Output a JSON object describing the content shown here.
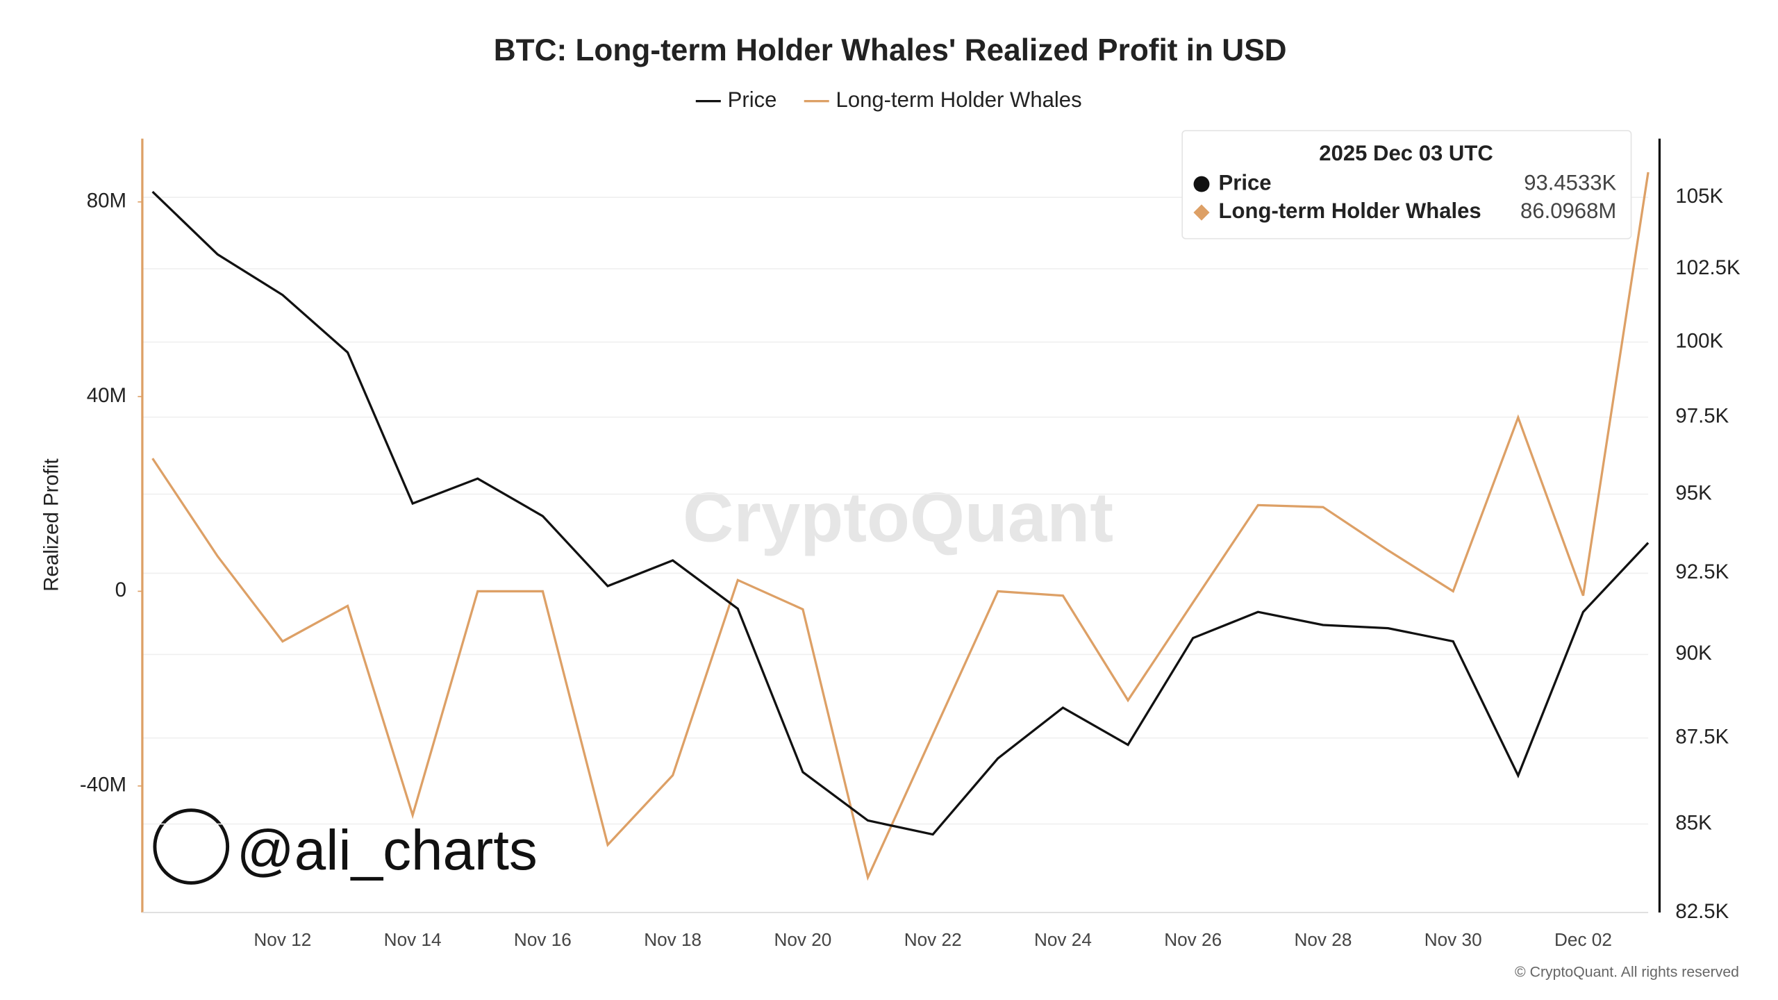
{
  "chart_data": {
    "type": "line",
    "title": "BTC: Long-term Holder Whales' Realized Profit in USD",
    "y_label": "Realized Profit",
    "watermark": "CryptoQuant",
    "handle": "@ali_charts",
    "copyright": "© CryptoQuant. All rights reserved",
    "categories": [
      null,
      null,
      "Nov 12",
      null,
      "Nov 14",
      null,
      "Nov 16",
      null,
      "Nov 18",
      null,
      "Nov 20",
      null,
      "Nov 22",
      null,
      "Nov 24",
      null,
      "Nov 26",
      null,
      "Nov 28",
      null,
      "Nov 30",
      null,
      "Dec 02",
      null
    ],
    "series": [
      {
        "name": "Price",
        "color": "#111111",
        "axis": "y2",
        "values": [
          105200,
          103000,
          101600,
          99650,
          94700,
          95500,
          94300,
          92100,
          92900,
          91400,
          86500,
          85100,
          84700,
          86900,
          88400,
          87300,
          90500,
          91300,
          90900,
          90800,
          90400,
          86400,
          91300,
          93453.3
        ]
      },
      {
        "name": "Long-term Holder Whales",
        "color": "#dda066",
        "values": [
          27.3,
          7.2,
          -10.3,
          -3.0,
          -46.0,
          0,
          0,
          -52.1,
          -37.8,
          2.3,
          -3.7,
          -58.8,
          -29.4,
          0,
          -0.9,
          -22.4,
          -2.3,
          17.7,
          17.3,
          8.4,
          0,
          35.7,
          -0.9,
          86.0968
        ]
      }
    ],
    "tooltip": {
      "title": "2025 Dec 03 UTC",
      "value_labels": [
        "93.4533K",
        "86.0968M"
      ]
    },
    "ylim": [
      -66,
      93
    ],
    "yticks": [
      {
        "value": -40,
        "label": "-40M"
      },
      0,
      {
        "value": 40,
        "label": "40M"
      },
      {
        "value": 80,
        "label": "80M"
      }
    ],
    "y2lim": [
      82500,
      107100
    ],
    "y2_log": true,
    "y2ticks": [
      {
        "value": 82500,
        "label": "82.5K"
      },
      {
        "value": 85000,
        "label": "85K"
      },
      {
        "value": 87500,
        "label": "87.5K"
      },
      {
        "value": 90000,
        "label": "90K"
      },
      {
        "value": 92500,
        "label": "92.5K"
      },
      {
        "value": 95000,
        "label": "95K"
      },
      {
        "value": 97500,
        "label": "97.5K"
      },
      {
        "value": 100000,
        "label": "100K"
      },
      {
        "value": 102500,
        "label": "102.5K"
      },
      {
        "value": 105000,
        "label": "105K"
      }
    ],
    "grid": true
  }
}
